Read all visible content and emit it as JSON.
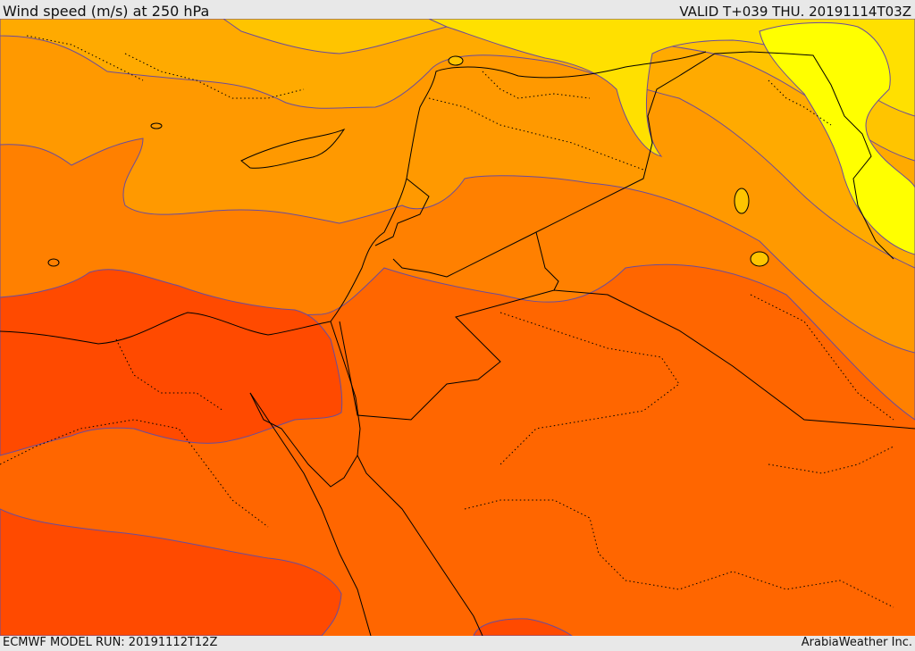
{
  "header": {
    "title": "Wind speed (m/s) at 250 hPa",
    "valid": "VALID T+039 THU. 20191114T03Z"
  },
  "footer": {
    "model_run": "ECMWF MODEL RUN: 20191112T12Z",
    "credit": "ArabiaWeather Inc."
  },
  "colors": {
    "yellow": "#ffff00",
    "yellow_gold": "#ffe000",
    "gold": "#ffc400",
    "amber": "#ffaa00",
    "orange_light": "#ff9900",
    "orange": "#ff8000",
    "orange_dark": "#ff6600",
    "red_orange": "#ff4a00",
    "contour": "#6a4c9c",
    "border": "#000000"
  }
}
